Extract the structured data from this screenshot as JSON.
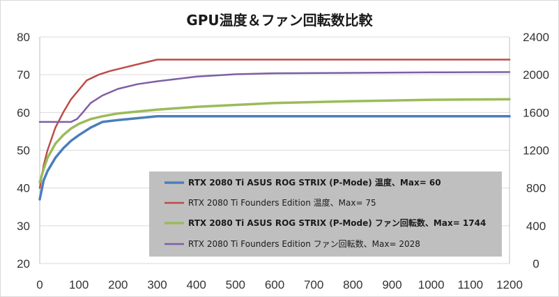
{
  "chart_data": {
    "type": "line",
    "title": "GPU温度＆ファン回転数比較",
    "xlim": [
      0,
      1200
    ],
    "x_ticks": [
      "0",
      "100",
      "200",
      "300",
      "400",
      "500",
      "600",
      "700",
      "800",
      "900",
      "1000",
      "1100",
      "1200"
    ],
    "y_left": {
      "lim": [
        20,
        80
      ],
      "ticks": [
        "20",
        "30",
        "40",
        "50",
        "60",
        "70",
        "80"
      ]
    },
    "y_right": {
      "lim": [
        0,
        2400
      ],
      "ticks": [
        "0",
        "400",
        "800",
        "1200",
        "1600",
        "2000",
        "2400"
      ]
    },
    "grid": true,
    "legend_position": "bottom-right",
    "series": [
      {
        "name": "RTX 2080 Ti ASUS ROG STRIX (P-Mode) 温度、Max= 60",
        "axis": "left",
        "color": "#4a7ebb",
        "width": 3.5,
        "bold": true,
        "x": [
          0,
          10,
          20,
          40,
          60,
          80,
          100,
          130,
          160,
          200,
          250,
          300,
          400,
          600,
          800,
          1000,
          1200
        ],
        "y": [
          37,
          42,
          44.5,
          48,
          50.5,
          52.5,
          54,
          56,
          57.5,
          58,
          58.5,
          59,
          59,
          59,
          59,
          59,
          59
        ]
      },
      {
        "name": "RTX 2080 Ti Founders Edition 温度、Max= 75",
        "axis": "left",
        "color": "#be4b48",
        "width": 2.5,
        "bold": false,
        "x": [
          0,
          10,
          20,
          40,
          60,
          80,
          100,
          120,
          150,
          180,
          220,
          260,
          300,
          400,
          600,
          800,
          1000,
          1200
        ],
        "y": [
          40,
          46,
          50,
          56,
          60,
          63.5,
          66,
          68.5,
          70,
          71,
          72,
          73,
          74,
          74,
          74,
          74,
          74,
          74
        ]
      },
      {
        "name": "RTX 2080 Ti ASUS ROG STRIX (P-Mode) ファン回転数、Max= 1744",
        "axis": "right",
        "color": "#9bbb59",
        "width": 3.5,
        "bold": true,
        "x": [
          0,
          10,
          20,
          40,
          60,
          80,
          100,
          130,
          160,
          200,
          250,
          300,
          400,
          500,
          600,
          800,
          1000,
          1200
        ],
        "y": [
          860,
          1000,
          1120,
          1270,
          1360,
          1430,
          1480,
          1530,
          1560,
          1590,
          1610,
          1630,
          1660,
          1680,
          1700,
          1720,
          1735,
          1740
        ]
      },
      {
        "name": "RTX 2080 Ti Founders Edition ファン回転数、Max= 2028",
        "axis": "right",
        "color": "#7e5ea6",
        "width": 2.5,
        "bold": false,
        "x": [
          0,
          40,
          80,
          95,
          110,
          130,
          160,
          200,
          250,
          300,
          400,
          500,
          600,
          800,
          1000,
          1200
        ],
        "y": [
          1500,
          1500,
          1500,
          1530,
          1600,
          1700,
          1780,
          1850,
          1900,
          1930,
          1980,
          2005,
          2015,
          2020,
          2025,
          2028
        ]
      }
    ]
  }
}
